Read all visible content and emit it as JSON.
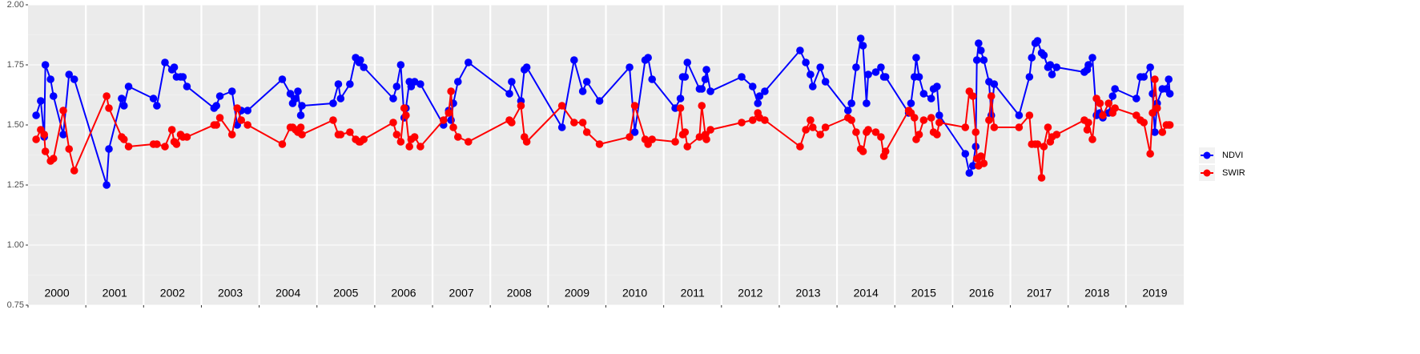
{
  "chart_data": {
    "type": "line",
    "x": [
      2000.14,
      2000.22,
      2000.28,
      2000.3,
      2000.39,
      2000.44,
      2000.61,
      2000.71,
      2000.8,
      2001.36,
      2001.4,
      2001.62,
      2001.66,
      2001.74,
      2002.17,
      2002.23,
      2002.37,
      2002.49,
      2002.53,
      2002.57,
      2002.64,
      2002.68,
      2002.75,
      2003.22,
      2003.26,
      2003.32,
      2003.53,
      2003.62,
      2003.69,
      2003.8,
      2004.4,
      2004.54,
      2004.58,
      2004.63,
      2004.67,
      2004.72,
      2004.74,
      2005.28,
      2005.37,
      2005.41,
      2005.57,
      2005.67,
      2005.73,
      2005.75,
      2005.81,
      2006.32,
      2006.38,
      2006.45,
      2006.51,
      2006.54,
      2006.6,
      2006.63,
      2006.69,
      2006.79,
      2007.19,
      2007.28,
      2007.32,
      2007.36,
      2007.44,
      2007.62,
      2008.33,
      2008.37,
      2008.53,
      2008.59,
      2008.63,
      2009.24,
      2009.45,
      2009.6,
      2009.67,
      2009.89,
      2010.41,
      2010.5,
      2010.68,
      2010.73,
      2010.8,
      2011.2,
      2011.29,
      2011.33,
      2011.37,
      2011.41,
      2011.62,
      2011.66,
      2011.72,
      2011.74,
      2011.81,
      2012.35,
      2012.54,
      2012.63,
      2012.66,
      2012.75,
      2013.36,
      2013.46,
      2013.54,
      2013.58,
      2013.71,
      2013.8,
      2014.19,
      2014.25,
      2014.33,
      2014.41,
      2014.45,
      2014.51,
      2014.54,
      2014.67,
      2014.76,
      2014.81,
      2014.84,
      2015.24,
      2015.28,
      2015.34,
      2015.37,
      2015.42,
      2015.5,
      2015.63,
      2015.67,
      2015.73,
      2015.77,
      2016.22,
      2016.29,
      2016.35,
      2016.4,
      2016.42,
      2016.45,
      2016.49,
      2016.54,
      2016.63,
      2016.67,
      2016.72,
      2017.15,
      2017.33,
      2017.37,
      2017.43,
      2017.47,
      2017.54,
      2017.58,
      2017.65,
      2017.69,
      2017.72,
      2017.8,
      2018.28,
      2018.33,
      2018.35,
      2018.42,
      2018.49,
      2018.55,
      2018.6,
      2018.7,
      2018.77,
      2018.81,
      2019.18,
      2019.25,
      2019.31,
      2019.42,
      2019.46,
      2019.5,
      2019.54,
      2019.63,
      2019.7,
      2019.74,
      2019.76
    ],
    "series": [
      {
        "name": "NDVI",
        "color": "#0000ff",
        "values": [
          1.54,
          1.6,
          1.45,
          1.75,
          1.69,
          1.62,
          1.46,
          1.71,
          1.69,
          1.25,
          1.4,
          1.61,
          1.58,
          1.66,
          1.61,
          1.58,
          1.76,
          1.73,
          1.74,
          1.7,
          1.7,
          1.7,
          1.66,
          1.57,
          1.58,
          1.62,
          1.64,
          1.5,
          1.56,
          1.56,
          1.69,
          1.63,
          1.59,
          1.61,
          1.64,
          1.54,
          1.58,
          1.59,
          1.67,
          1.61,
          1.67,
          1.78,
          1.76,
          1.77,
          1.74,
          1.61,
          1.66,
          1.75,
          1.53,
          1.57,
          1.68,
          1.66,
          1.68,
          1.67,
          1.5,
          1.56,
          1.52,
          1.59,
          1.68,
          1.76,
          1.63,
          1.68,
          1.6,
          1.73,
          1.74,
          1.49,
          1.77,
          1.64,
          1.68,
          1.6,
          1.74,
          1.47,
          1.77,
          1.78,
          1.69,
          1.57,
          1.61,
          1.7,
          1.7,
          1.76,
          1.65,
          1.65,
          1.69,
          1.73,
          1.64,
          1.7,
          1.66,
          1.59,
          1.62,
          1.64,
          1.81,
          1.76,
          1.71,
          1.66,
          1.74,
          1.68,
          1.56,
          1.59,
          1.74,
          1.86,
          1.83,
          1.59,
          1.71,
          1.72,
          1.74,
          1.7,
          1.7,
          1.55,
          1.59,
          1.7,
          1.78,
          1.7,
          1.63,
          1.61,
          1.65,
          1.66,
          1.54,
          1.38,
          1.3,
          1.33,
          1.41,
          1.77,
          1.84,
          1.81,
          1.77,
          1.68,
          1.54,
          1.67,
          1.54,
          1.7,
          1.78,
          1.84,
          1.85,
          1.8,
          1.79,
          1.74,
          1.75,
          1.71,
          1.74,
          1.72,
          1.73,
          1.75,
          1.78,
          1.54,
          1.55,
          1.53,
          1.55,
          1.62,
          1.65,
          1.61,
          1.7,
          1.7,
          1.74,
          1.63,
          1.47,
          1.59,
          1.65,
          1.65,
          1.69,
          1.63
        ]
      },
      {
        "name": "SWIR",
        "color": "#ff0000",
        "values": [
          1.44,
          1.48,
          1.46,
          1.39,
          1.35,
          1.36,
          1.56,
          1.4,
          1.31,
          1.62,
          1.57,
          1.45,
          1.44,
          1.41,
          1.42,
          1.42,
          1.41,
          1.48,
          1.43,
          1.42,
          1.46,
          1.45,
          1.45,
          1.5,
          1.5,
          1.53,
          1.46,
          1.57,
          1.52,
          1.5,
          1.42,
          1.49,
          1.49,
          1.48,
          1.47,
          1.49,
          1.46,
          1.52,
          1.46,
          1.46,
          1.47,
          1.44,
          1.43,
          1.43,
          1.44,
          1.51,
          1.46,
          1.43,
          1.57,
          1.54,
          1.41,
          1.44,
          1.45,
          1.41,
          1.52,
          1.55,
          1.64,
          1.49,
          1.45,
          1.43,
          1.52,
          1.51,
          1.58,
          1.45,
          1.43,
          1.58,
          1.51,
          1.51,
          1.47,
          1.42,
          1.45,
          1.58,
          1.44,
          1.42,
          1.44,
          1.43,
          1.57,
          1.46,
          1.47,
          1.41,
          1.45,
          1.58,
          1.46,
          1.44,
          1.48,
          1.51,
          1.52,
          1.55,
          1.53,
          1.52,
          1.41,
          1.48,
          1.52,
          1.49,
          1.46,
          1.49,
          1.53,
          1.52,
          1.47,
          1.4,
          1.39,
          1.47,
          1.48,
          1.47,
          1.45,
          1.37,
          1.39,
          1.56,
          1.55,
          1.53,
          1.44,
          1.46,
          1.52,
          1.53,
          1.47,
          1.46,
          1.51,
          1.49,
          1.64,
          1.62,
          1.47,
          1.36,
          1.33,
          1.37,
          1.34,
          1.52,
          1.62,
          1.49,
          1.49,
          1.54,
          1.42,
          1.42,
          1.42,
          1.28,
          1.41,
          1.49,
          1.43,
          1.45,
          1.46,
          1.52,
          1.48,
          1.51,
          1.44,
          1.61,
          1.59,
          1.54,
          1.59,
          1.55,
          1.57,
          1.54,
          1.52,
          1.51,
          1.38,
          1.55,
          1.69,
          1.57,
          1.47,
          1.5,
          1.5,
          1.5
        ]
      }
    ],
    "xlim": [
      2000,
      2020
    ],
    "xticks": [
      2000,
      2001,
      2002,
      2003,
      2004,
      2005,
      2006,
      2007,
      2008,
      2009,
      2010,
      2011,
      2012,
      2013,
      2014,
      2015,
      2016,
      2017,
      2018,
      2019
    ],
    "ylim": [
      0.75,
      2.0
    ],
    "yticks": [
      0.75,
      {
        "value": 1.0,
        "label": "1.00"
      },
      1.25,
      {
        "value": 1.5,
        "label": "1.50"
      },
      1.75,
      {
        "value": 2.0,
        "label": "2.00"
      }
    ],
    "grid": true,
    "legend": "right"
  }
}
